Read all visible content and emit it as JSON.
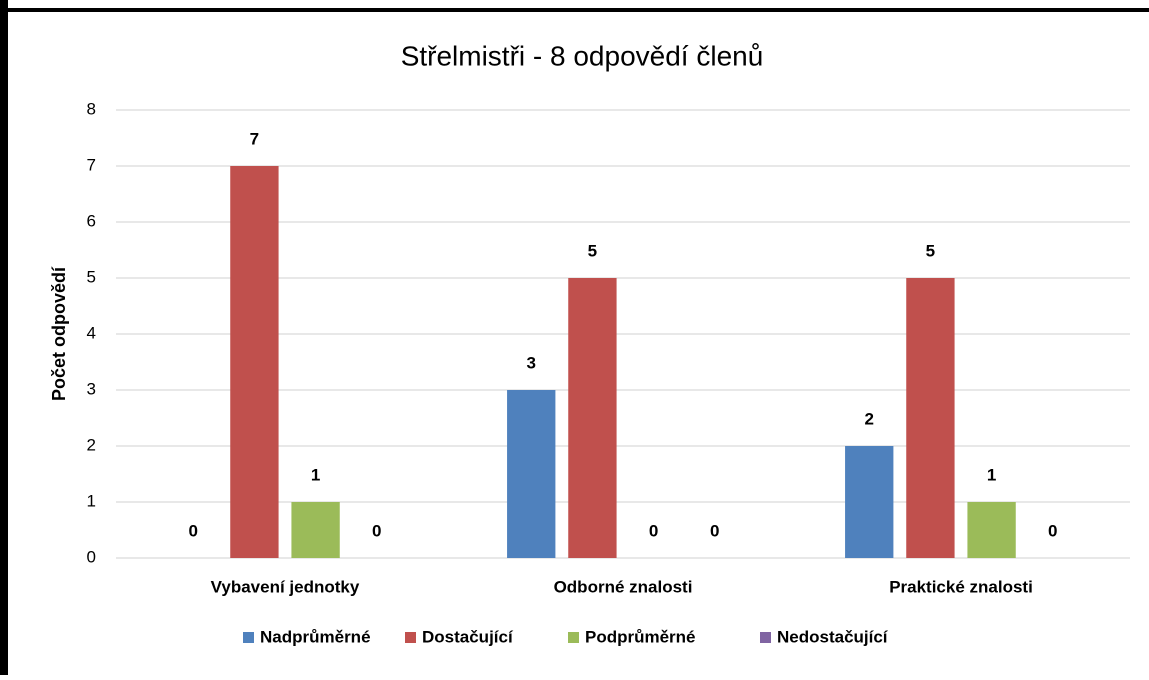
{
  "chart_data": {
    "type": "bar",
    "title": "Střelmistři -  8 odpovědí členů",
    "y_label": "Počet odpovědí",
    "categories": [
      "Vybavení jednotky",
      "Odborné znalosti",
      "Praktické znalosti"
    ],
    "series": [
      {
        "name": "Nadprůměrné",
        "color": "#4f81bd",
        "values": [
          0,
          3,
          2
        ]
      },
      {
        "name": "Dostačující",
        "color": "#c0504d",
        "values": [
          7,
          5,
          5
        ]
      },
      {
        "name": "Podprůměrné",
        "color": "#9bbb59",
        "values": [
          1,
          0,
          1
        ]
      },
      {
        "name": "Nedostačující",
        "color": "#8064a2",
        "values": [
          0,
          0,
          0
        ]
      }
    ],
    "ylim": [
      0,
      8
    ],
    "yticks": [
      0,
      1,
      2,
      3,
      4,
      5,
      6,
      7,
      8
    ],
    "grid": true,
    "legend": "bottom",
    "data_labels": true
  }
}
